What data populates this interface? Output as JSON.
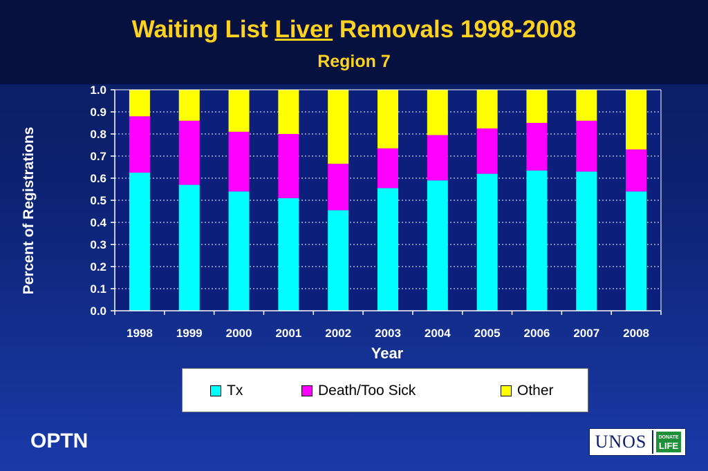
{
  "header": {
    "title_pre": "Waiting List ",
    "title_underlined": "Liver",
    "title_post": " Removals 1998-2008",
    "subtitle": "Region 7"
  },
  "footer": {
    "optn_label": "OPTN",
    "logo_text": "UNOS",
    "logo_badge_line1": "DONATE",
    "logo_badge_line2": "LIFE"
  },
  "colors": {
    "title": "#ffd21f",
    "plot_background": "#0c1f7a",
    "tx": "#00ffff",
    "death": "#ff00ff",
    "other": "#ffff00"
  },
  "chart_data": {
    "type": "bar",
    "stacked": true,
    "title": "Waiting List Liver Removals 1998-2008",
    "subtitle": "Region 7",
    "xlabel": "Year",
    "ylabel": "Percent of Registrations",
    "ylim": [
      0,
      1.0
    ],
    "yticks": [
      "0.0",
      "0.1",
      "0.2",
      "0.3",
      "0.4",
      "0.5",
      "0.6",
      "0.7",
      "0.8",
      "0.9",
      "1.0"
    ],
    "grid": true,
    "legend_position": "bottom",
    "categories": [
      "1998",
      "1999",
      "2000",
      "2001",
      "2002",
      "2003",
      "2004",
      "2005",
      "2006",
      "2007",
      "2008"
    ],
    "series": [
      {
        "name": "Tx",
        "color": "#00ffff",
        "values": [
          0.625,
          0.57,
          0.54,
          0.51,
          0.455,
          0.555,
          0.59,
          0.62,
          0.635,
          0.63,
          0.54
        ]
      },
      {
        "name": "Death/Too Sick",
        "color": "#ff00ff",
        "values": [
          0.255,
          0.29,
          0.27,
          0.29,
          0.21,
          0.18,
          0.205,
          0.205,
          0.215,
          0.23,
          0.19
        ]
      },
      {
        "name": "Other",
        "color": "#ffff00",
        "values": [
          0.12,
          0.14,
          0.19,
          0.2,
          0.335,
          0.265,
          0.205,
          0.175,
          0.15,
          0.14,
          0.27
        ]
      }
    ]
  }
}
